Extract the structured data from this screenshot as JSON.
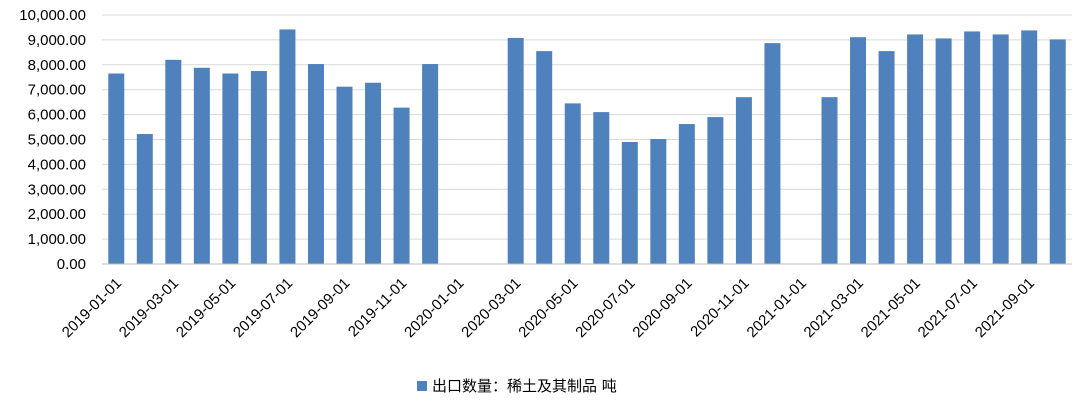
{
  "chart_data": {
    "type": "bar",
    "categories": [
      "2019-01-01",
      "2019-02-01",
      "2019-03-01",
      "2019-04-01",
      "2019-05-01",
      "2019-06-01",
      "2019-07-01",
      "2019-08-01",
      "2019-09-01",
      "2019-10-01",
      "2019-11-01",
      "2019-12-01",
      "2020-01-01",
      "2020-02-01",
      "2020-03-01",
      "2020-04-01",
      "2020-05-01",
      "2020-06-01",
      "2020-07-01",
      "2020-08-01",
      "2020-09-01",
      "2020-10-01",
      "2020-11-01",
      "2020-12-01",
      "2021-01-01",
      "2021-02-01",
      "2021-03-01",
      "2021-04-01",
      "2021-05-01",
      "2021-06-01",
      "2021-07-01",
      "2021-08-01",
      "2021-09-01",
      "2021-10-01"
    ],
    "x_tick_labels": [
      "2019-01-01",
      "2019-03-01",
      "2019-05-01",
      "2019-07-01",
      "2019-09-01",
      "2019-11-01",
      "2020-01-01",
      "2020-03-01",
      "2020-05-01",
      "2020-07-01",
      "2020-09-01",
      "2020-11-01",
      "2021-01-01",
      "2021-03-01",
      "2021-05-01",
      "2021-07-01",
      "2021-09-01"
    ],
    "series": [
      {
        "name": "出口数量：稀土及其制品 吨",
        "color": "#4F81BD",
        "values": [
          7650,
          5220,
          8200,
          7880,
          7650,
          7750,
          9420,
          8030,
          7120,
          7280,
          6280,
          8030,
          null,
          null,
          9080,
          8550,
          6450,
          6100,
          4900,
          5020,
          5620,
          5900,
          6700,
          8870,
          null,
          6700,
          9110,
          8550,
          9220,
          9060,
          9340,
          9220,
          9380,
          9020
        ]
      }
    ],
    "y_tick_labels": [
      "0.00",
      "1,000.00",
      "2,000.00",
      "3,000.00",
      "4,000.00",
      "5,000.00",
      "6,000.00",
      "7,000.00",
      "8,000.00",
      "9,000.00",
      "10,000.00"
    ],
    "ylim": [
      0,
      10000
    ],
    "y_step": 1000,
    "title": "",
    "xlabel": "",
    "ylabel": "",
    "grid": true,
    "legend_position": "bottom-center",
    "legend_icon": "square-marker-icon"
  }
}
